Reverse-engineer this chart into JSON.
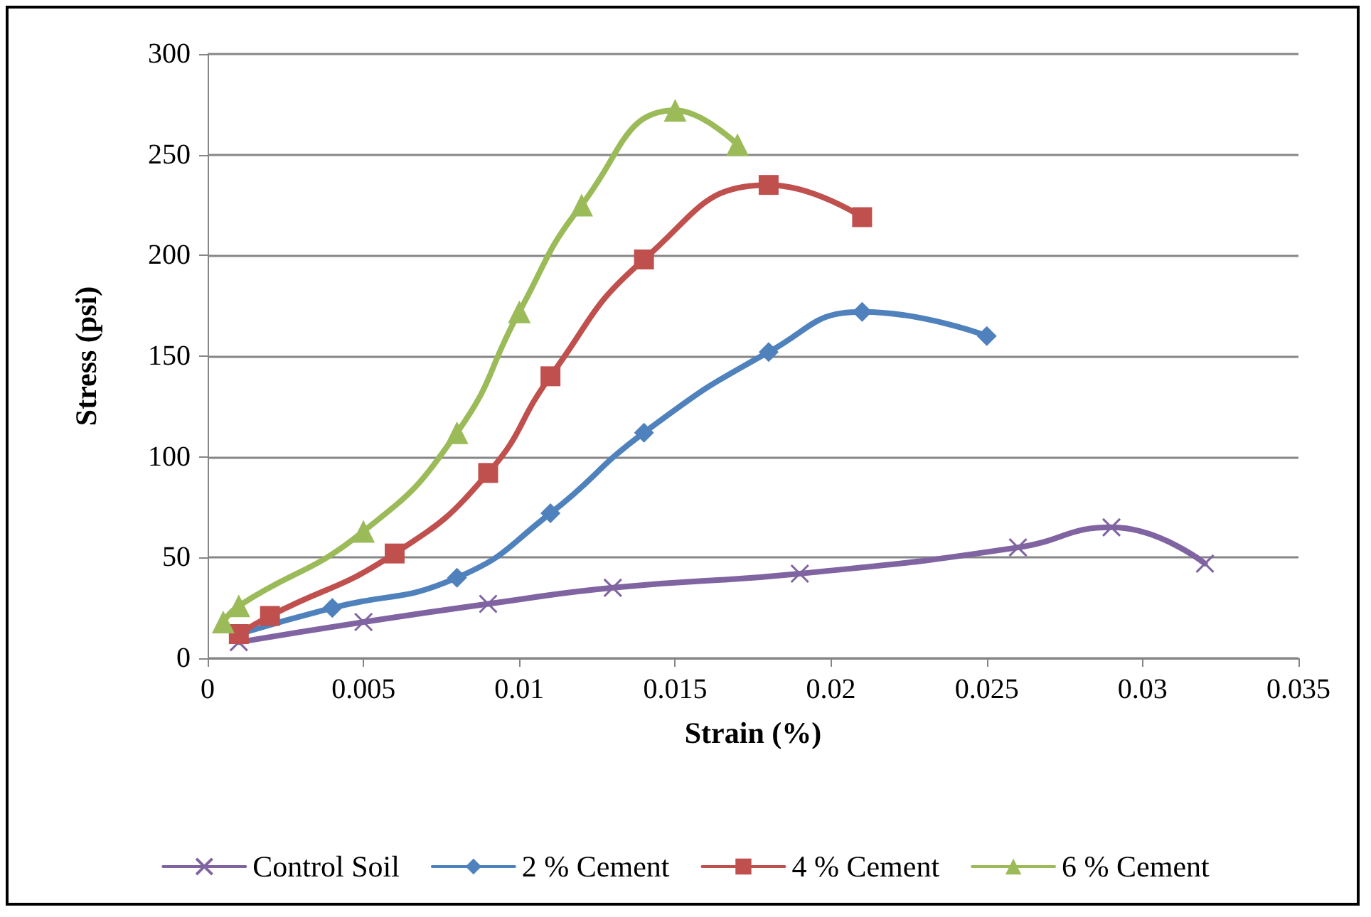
{
  "chart_data": {
    "type": "line",
    "xlabel": "Strain (%)",
    "ylabel": "Stress (psi)",
    "xlim": [
      0,
      0.035
    ],
    "xticks": [
      0,
      0.005,
      0.01,
      0.015,
      0.02,
      0.025,
      0.03,
      0.035
    ],
    "ylim": [
      0,
      300
    ],
    "yticks": [
      0,
      50,
      100,
      150,
      200,
      250,
      300
    ],
    "grid": "y",
    "legend": "bottom",
    "line_style": "solid",
    "series": [
      {
        "name": "Control Soil",
        "color": "#8064a2",
        "marker": "cross",
        "x": [
          0.001,
          0.005,
          0.009,
          0.013,
          0.019,
          0.026,
          0.029,
          0.032
        ],
        "values": [
          8,
          18,
          27,
          35,
          42,
          55,
          65,
          47
        ]
      },
      {
        "name": "2 % Cement",
        "color": "#4f81bd",
        "marker": "diamond",
        "x": [
          0.001,
          0.004,
          0.008,
          0.011,
          0.014,
          0.018,
          0.021,
          0.025
        ],
        "values": [
          12,
          25,
          40,
          72,
          112,
          152,
          172,
          160
        ]
      },
      {
        "name": "4 % Cement",
        "color": "#c0504d",
        "marker": "square",
        "x": [
          0.001,
          0.002,
          0.006,
          0.009,
          0.011,
          0.014,
          0.018,
          0.021
        ],
        "values": [
          12,
          21,
          52,
          92,
          140,
          198,
          235,
          219
        ]
      },
      {
        "name": "6 % Cement",
        "color": "#9bbb59",
        "marker": "triangle",
        "x": [
          0.0005,
          0.001,
          0.005,
          0.008,
          0.01,
          0.012,
          0.015,
          0.017
        ],
        "values": [
          18,
          26,
          63,
          112,
          172,
          225,
          272,
          255
        ]
      }
    ]
  }
}
